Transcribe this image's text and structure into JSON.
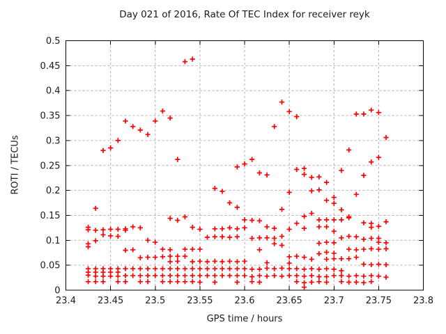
{
  "chart": {
    "title": "Day 021 of 2016, Rate Of TEC Index for receiver reyk",
    "xlabel": "GPS time / hours",
    "ylabel": "ROTI / TECUs"
  },
  "chart_data": {
    "type": "scatter",
    "title": "Day 021 of 2016, Rate Of TEC Index for receiver reyk",
    "xlabel": "GPS time / hours",
    "ylabel": "ROTI / TECUs",
    "xlim": [
      23.4,
      23.8
    ],
    "ylim": [
      0,
      0.5
    ],
    "xticks": [
      23.4,
      23.45,
      23.5,
      23.55,
      23.6,
      23.65,
      23.7,
      23.75,
      23.8
    ],
    "xtick_labels": [
      "23.4",
      "23.45",
      "23.5",
      "23.55",
      "23.6",
      "23.65",
      "23.7",
      "23.75",
      "23.8"
    ],
    "yticks": [
      0,
      0.05,
      0.1,
      0.15,
      0.2,
      0.25,
      0.3,
      0.35,
      0.4,
      0.45,
      0.5
    ],
    "ytick_labels": [
      "0",
      "0.05",
      "0.1",
      "0.15",
      "0.2",
      "0.25",
      "0.3",
      "0.35",
      "0.4",
      "0.45",
      "0.5"
    ],
    "grid": true,
    "grid_style": "dashed-gray",
    "legend_position": "none",
    "marker": "plus",
    "marker_color": "#ff0000",
    "axis_color": "#000000",
    "grid_color": "#b0b0b0",
    "series": [
      {
        "name": "ROTI",
        "points": [
          [
            23.425,
            0.126
          ],
          [
            23.425,
            0.121
          ],
          [
            23.425,
            0.093
          ],
          [
            23.425,
            0.087
          ],
          [
            23.425,
            0.043
          ],
          [
            23.425,
            0.036
          ],
          [
            23.425,
            0.03
          ],
          [
            23.425,
            0.017
          ],
          [
            23.4333,
            0.164
          ],
          [
            23.4333,
            0.12
          ],
          [
            23.4333,
            0.099
          ],
          [
            23.4333,
            0.043
          ],
          [
            23.4333,
            0.036
          ],
          [
            23.4333,
            0.028
          ],
          [
            23.4333,
            0.017
          ],
          [
            23.4417,
            0.28
          ],
          [
            23.4417,
            0.121
          ],
          [
            23.4417,
            0.111
          ],
          [
            23.4417,
            0.043
          ],
          [
            23.4417,
            0.036
          ],
          [
            23.4417,
            0.028
          ],
          [
            23.4417,
            0.017
          ],
          [
            23.45,
            0.285
          ],
          [
            23.45,
            0.122
          ],
          [
            23.45,
            0.109
          ],
          [
            23.45,
            0.043
          ],
          [
            23.45,
            0.036
          ],
          [
            23.45,
            0.028
          ],
          [
            23.4583,
            0.3
          ],
          [
            23.4583,
            0.122
          ],
          [
            23.4583,
            0.108
          ],
          [
            23.4583,
            0.043
          ],
          [
            23.4583,
            0.036
          ],
          [
            23.4583,
            0.028
          ],
          [
            23.4583,
            0.017
          ],
          [
            23.4667,
            0.339
          ],
          [
            23.4667,
            0.123
          ],
          [
            23.4667,
            0.12
          ],
          [
            23.4667,
            0.08
          ],
          [
            23.4667,
            0.043
          ],
          [
            23.4667,
            0.029
          ],
          [
            23.4667,
            0.017
          ],
          [
            23.475,
            0.328
          ],
          [
            23.475,
            0.127
          ],
          [
            23.475,
            0.081
          ],
          [
            23.475,
            0.043
          ],
          [
            23.475,
            0.029
          ],
          [
            23.4833,
            0.321
          ],
          [
            23.4833,
            0.125
          ],
          [
            23.4833,
            0.065
          ],
          [
            23.4833,
            0.043
          ],
          [
            23.4833,
            0.029
          ],
          [
            23.4833,
            0.017
          ],
          [
            23.4917,
            0.312
          ],
          [
            23.4917,
            0.1
          ],
          [
            23.4917,
            0.066
          ],
          [
            23.4917,
            0.043
          ],
          [
            23.4917,
            0.029
          ],
          [
            23.4917,
            0.017
          ],
          [
            23.5,
            0.339
          ],
          [
            23.5,
            0.096
          ],
          [
            23.5,
            0.066
          ],
          [
            23.5,
            0.043
          ],
          [
            23.5,
            0.029
          ],
          [
            23.5083,
            0.359
          ],
          [
            23.5083,
            0.082
          ],
          [
            23.5083,
            0.067
          ],
          [
            23.5083,
            0.043
          ],
          [
            23.5083,
            0.029
          ],
          [
            23.5083,
            0.017
          ],
          [
            23.5167,
            0.345
          ],
          [
            23.5167,
            0.144
          ],
          [
            23.5167,
            0.081
          ],
          [
            23.5167,
            0.068
          ],
          [
            23.5167,
            0.057
          ],
          [
            23.5167,
            0.043
          ],
          [
            23.5167,
            0.029
          ],
          [
            23.5167,
            0.017
          ],
          [
            23.525,
            0.262
          ],
          [
            23.525,
            0.14
          ],
          [
            23.525,
            0.068
          ],
          [
            23.525,
            0.058
          ],
          [
            23.525,
            0.043
          ],
          [
            23.525,
            0.029
          ],
          [
            23.525,
            0.017
          ],
          [
            23.5333,
            0.458
          ],
          [
            23.5333,
            0.147
          ],
          [
            23.5333,
            0.082
          ],
          [
            23.5333,
            0.068
          ],
          [
            23.5333,
            0.043
          ],
          [
            23.5333,
            0.029
          ],
          [
            23.5333,
            0.017
          ],
          [
            23.5417,
            0.463
          ],
          [
            23.5417,
            0.126
          ],
          [
            23.5417,
            0.082
          ],
          [
            23.5417,
            0.057
          ],
          [
            23.5417,
            0.043
          ],
          [
            23.5417,
            0.029
          ],
          [
            23.5417,
            0.017
          ],
          [
            23.55,
            0.122
          ],
          [
            23.55,
            0.082
          ],
          [
            23.55,
            0.058
          ],
          [
            23.55,
            0.043
          ],
          [
            23.55,
            0.029
          ],
          [
            23.55,
            0.016
          ],
          [
            23.5583,
            0.106
          ],
          [
            23.5583,
            0.057
          ],
          [
            23.5583,
            0.043
          ],
          [
            23.5583,
            0.029
          ],
          [
            23.5667,
            0.204
          ],
          [
            23.5667,
            0.123
          ],
          [
            23.5667,
            0.107
          ],
          [
            23.5667,
            0.058
          ],
          [
            23.5667,
            0.043
          ],
          [
            23.5667,
            0.029
          ],
          [
            23.5667,
            0.016
          ],
          [
            23.575,
            0.198
          ],
          [
            23.575,
            0.123
          ],
          [
            23.575,
            0.107
          ],
          [
            23.575,
            0.057
          ],
          [
            23.575,
            0.043
          ],
          [
            23.575,
            0.029
          ],
          [
            23.5833,
            0.175
          ],
          [
            23.5833,
            0.125
          ],
          [
            23.5833,
            0.106
          ],
          [
            23.5833,
            0.058
          ],
          [
            23.5833,
            0.043
          ],
          [
            23.5833,
            0.029
          ],
          [
            23.5917,
            0.247
          ],
          [
            23.5917,
            0.166
          ],
          [
            23.5917,
            0.123
          ],
          [
            23.5917,
            0.107
          ],
          [
            23.5917,
            0.057
          ],
          [
            23.5917,
            0.043
          ],
          [
            23.5917,
            0.029
          ],
          [
            23.5917,
            0.016
          ],
          [
            23.6,
            0.253
          ],
          [
            23.6,
            0.141
          ],
          [
            23.6,
            0.125
          ],
          [
            23.6,
            0.058
          ],
          [
            23.6,
            0.043
          ],
          [
            23.6,
            0.029
          ],
          [
            23.6083,
            0.262
          ],
          [
            23.6083,
            0.14
          ],
          [
            23.6083,
            0.104
          ],
          [
            23.6083,
            0.042
          ],
          [
            23.6083,
            0.027
          ],
          [
            23.6083,
            0.017
          ],
          [
            23.6167,
            0.235
          ],
          [
            23.6167,
            0.139
          ],
          [
            23.6167,
            0.105
          ],
          [
            23.6167,
            0.081
          ],
          [
            23.6167,
            0.042
          ],
          [
            23.6167,
            0.029
          ],
          [
            23.6167,
            0.016
          ],
          [
            23.625,
            0.231
          ],
          [
            23.625,
            0.127
          ],
          [
            23.625,
            0.105
          ],
          [
            23.625,
            0.055
          ],
          [
            23.625,
            0.044
          ],
          [
            23.625,
            0.028
          ],
          [
            23.6333,
            0.328
          ],
          [
            23.6333,
            0.124
          ],
          [
            23.6333,
            0.104
          ],
          [
            23.6333,
            0.093
          ],
          [
            23.6333,
            0.043
          ],
          [
            23.6333,
            0.029
          ],
          [
            23.6417,
            0.377
          ],
          [
            23.6417,
            0.162
          ],
          [
            23.6417,
            0.108
          ],
          [
            23.6417,
            0.09
          ],
          [
            23.6417,
            0.044
          ],
          [
            23.6417,
            0.028
          ],
          [
            23.65,
            0.358
          ],
          [
            23.65,
            0.196
          ],
          [
            23.65,
            0.122
          ],
          [
            23.65,
            0.067
          ],
          [
            23.65,
            0.054
          ],
          [
            23.65,
            0.043
          ],
          [
            23.65,
            0.029
          ],
          [
            23.6583,
            0.348
          ],
          [
            23.6583,
            0.242
          ],
          [
            23.6583,
            0.134
          ],
          [
            23.6583,
            0.068
          ],
          [
            23.6583,
            0.043
          ],
          [
            23.6583,
            0.029
          ],
          [
            23.6583,
            0.017
          ],
          [
            23.6667,
            0.244
          ],
          [
            23.6667,
            0.232
          ],
          [
            23.6667,
            0.148
          ],
          [
            23.6667,
            0.124
          ],
          [
            23.6667,
            0.066
          ],
          [
            23.6667,
            0.042
          ],
          [
            23.6667,
            0.028
          ],
          [
            23.6667,
            0.015
          ],
          [
            23.6667,
            0.006
          ],
          [
            23.675,
            0.226
          ],
          [
            23.675,
            0.199
          ],
          [
            23.675,
            0.154
          ],
          [
            23.675,
            0.062
          ],
          [
            23.675,
            0.043
          ],
          [
            23.675,
            0.029
          ],
          [
            23.675,
            0.016
          ],
          [
            23.6833,
            0.227
          ],
          [
            23.6833,
            0.201
          ],
          [
            23.6833,
            0.141
          ],
          [
            23.6833,
            0.127
          ],
          [
            23.6833,
            0.094
          ],
          [
            23.6833,
            0.073
          ],
          [
            23.6833,
            0.042
          ],
          [
            23.6833,
            0.027
          ],
          [
            23.6833,
            0.017
          ],
          [
            23.6917,
            0.216
          ],
          [
            23.6917,
            0.18
          ],
          [
            23.6917,
            0.141
          ],
          [
            23.6917,
            0.127
          ],
          [
            23.6917,
            0.096
          ],
          [
            23.6917,
            0.076
          ],
          [
            23.6917,
            0.062
          ],
          [
            23.6917,
            0.043
          ],
          [
            23.6917,
            0.027
          ],
          [
            23.6917,
            0.016
          ],
          [
            23.7,
            0.186
          ],
          [
            23.7,
            0.174
          ],
          [
            23.7,
            0.141
          ],
          [
            23.7,
            0.118
          ],
          [
            23.7,
            0.095
          ],
          [
            23.7,
            0.074
          ],
          [
            23.7,
            0.063
          ],
          [
            23.7,
            0.042
          ],
          [
            23.7,
            0.029
          ],
          [
            23.7083,
            0.24
          ],
          [
            23.7083,
            0.161
          ],
          [
            23.7083,
            0.141
          ],
          [
            23.7083,
            0.105
          ],
          [
            23.7083,
            0.063
          ],
          [
            23.7083,
            0.039
          ],
          [
            23.7083,
            0.029
          ],
          [
            23.7083,
            0.017
          ],
          [
            23.7167,
            0.281
          ],
          [
            23.7167,
            0.147
          ],
          [
            23.7167,
            0.145
          ],
          [
            23.7167,
            0.108
          ],
          [
            23.7167,
            0.082
          ],
          [
            23.7167,
            0.063
          ],
          [
            23.7167,
            0.028
          ],
          [
            23.7167,
            0.016
          ],
          [
            23.725,
            0.353
          ],
          [
            23.725,
            0.192
          ],
          [
            23.725,
            0.107
          ],
          [
            23.725,
            0.081
          ],
          [
            23.725,
            0.066
          ],
          [
            23.725,
            0.029
          ],
          [
            23.725,
            0.016
          ],
          [
            23.7333,
            0.353
          ],
          [
            23.7333,
            0.23
          ],
          [
            23.7333,
            0.135
          ],
          [
            23.7333,
            0.102
          ],
          [
            23.7333,
            0.082
          ],
          [
            23.7333,
            0.052
          ],
          [
            23.7333,
            0.028
          ],
          [
            23.7333,
            0.015
          ],
          [
            23.7417,
            0.361
          ],
          [
            23.7417,
            0.257
          ],
          [
            23.7417,
            0.134
          ],
          [
            23.7417,
            0.126
          ],
          [
            23.7417,
            0.104
          ],
          [
            23.7417,
            0.083
          ],
          [
            23.7417,
            0.051
          ],
          [
            23.7417,
            0.029
          ],
          [
            23.7417,
            0.017
          ],
          [
            23.75,
            0.356
          ],
          [
            23.75,
            0.266
          ],
          [
            23.75,
            0.128
          ],
          [
            23.75,
            0.104
          ],
          [
            23.75,
            0.096
          ],
          [
            23.75,
            0.082
          ],
          [
            23.75,
            0.052
          ],
          [
            23.75,
            0.028
          ],
          [
            23.7583,
            0.306
          ],
          [
            23.7583,
            0.137
          ],
          [
            23.7583,
            0.095
          ],
          [
            23.7583,
            0.083
          ],
          [
            23.7583,
            0.051
          ],
          [
            23.7583,
            0.026
          ]
        ]
      }
    ]
  }
}
